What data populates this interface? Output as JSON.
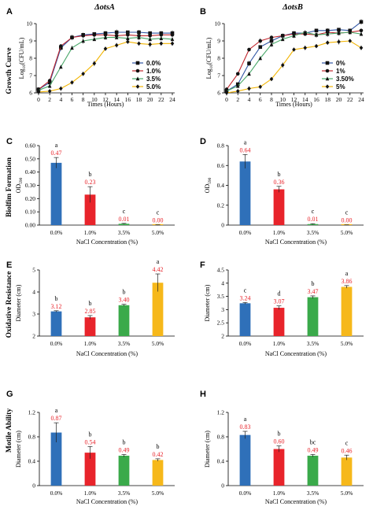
{
  "figure": {
    "row_labels": [
      "Growth Curve",
      "Biolfim Formation",
      "Oxidative Resistance",
      "Motile Ability"
    ],
    "value_label_color": "#e8242b"
  },
  "chart_data": [
    {
      "panel": "A",
      "type": "line",
      "title": "ΔotsA",
      "xlabel": "Times (Hours)",
      "ylabel": "Log10(CFU/mL)",
      "xlim": [
        0,
        24
      ],
      "ylim": [
        6,
        10
      ],
      "xticks": [
        0,
        2,
        4,
        6,
        8,
        10,
        12,
        14,
        16,
        18,
        20,
        22,
        24
      ],
      "yticks": [
        6,
        7,
        8,
        9,
        10
      ],
      "grid": false,
      "legend": "bottom-right",
      "x": [
        0,
        2,
        4,
        6,
        8,
        10,
        12,
        14,
        16,
        18,
        20,
        22,
        24
      ],
      "series": [
        {
          "name": "0.0%",
          "color": "#2f55a4",
          "marker": "square",
          "values": [
            6.2,
            6.6,
            8.6,
            9.2,
            9.35,
            9.4,
            9.45,
            9.5,
            9.5,
            9.5,
            9.45,
            9.45,
            9.45
          ]
        },
        {
          "name": "1.0%",
          "color": "#c0262d",
          "marker": "circle",
          "values": [
            6.2,
            6.7,
            8.7,
            9.2,
            9.3,
            9.35,
            9.35,
            9.3,
            9.35,
            9.3,
            9.3,
            9.35,
            9.35
          ]
        },
        {
          "name": "3.5%",
          "color": "#4aa86a",
          "marker": "triangle",
          "values": [
            6.15,
            6.4,
            7.5,
            8.6,
            9.0,
            9.1,
            9.2,
            9.2,
            9.15,
            9.2,
            9.1,
            9.15,
            9.1
          ]
        },
        {
          "name": "5.0%",
          "color": "#f2b400",
          "marker": "diamond",
          "values": [
            6.05,
            6.1,
            6.25,
            6.6,
            7.1,
            7.7,
            8.55,
            8.75,
            8.95,
            8.85,
            8.8,
            8.85,
            8.85
          ]
        }
      ]
    },
    {
      "panel": "B",
      "type": "line",
      "title": "ΔotsB",
      "xlabel": "Times (Hours)",
      "ylabel": "Log10(CFU/mL)",
      "xlim": [
        0,
        24
      ],
      "ylim": [
        6,
        10
      ],
      "xticks": [
        0,
        2,
        4,
        6,
        8,
        10,
        12,
        14,
        16,
        18,
        20,
        22,
        24
      ],
      "yticks": [
        6,
        7,
        8,
        9,
        10
      ],
      "grid": false,
      "legend": "bottom-right",
      "x": [
        0,
        2,
        4,
        6,
        8,
        10,
        12,
        14,
        16,
        18,
        20,
        22,
        24
      ],
      "series": [
        {
          "name": "0%",
          "color": "#2f55a4",
          "marker": "square",
          "values": [
            6.1,
            6.5,
            7.7,
            8.65,
            9.0,
            9.3,
            9.45,
            9.45,
            9.6,
            9.6,
            9.65,
            9.6,
            10.1
          ]
        },
        {
          "name": "1%",
          "color": "#c0262d",
          "marker": "circle",
          "values": [
            6.2,
            7.1,
            8.5,
            9.0,
            9.2,
            9.3,
            9.4,
            9.4,
            9.35,
            9.5,
            9.45,
            9.5,
            9.6
          ]
        },
        {
          "name": "3.50%",
          "color": "#4aa86a",
          "marker": "triangle",
          "values": [
            6.1,
            6.4,
            7.1,
            8.0,
            8.8,
            9.1,
            9.3,
            9.5,
            9.35,
            9.4,
            9.45,
            9.5,
            9.4
          ]
        },
        {
          "name": "5%",
          "color": "#f2b400",
          "marker": "diamond",
          "values": [
            6.0,
            6.1,
            6.25,
            6.35,
            6.8,
            7.6,
            8.5,
            8.6,
            8.7,
            8.9,
            8.95,
            9.0,
            8.6
          ]
        }
      ]
    },
    {
      "panel": "C",
      "type": "bar",
      "xlabel": "NaCl  Concentration (%)",
      "ylabel": "OD590",
      "ylim": [
        0,
        0.6
      ],
      "yticks": [
        0,
        0.1,
        0.2,
        0.3,
        0.4,
        0.5,
        0.6
      ],
      "yticklabels": [
        "0.00",
        "0.10",
        "0.20",
        "0.30",
        "0.40",
        "0.50",
        "0.60"
      ],
      "categories": [
        "0.0%",
        "1.0%",
        "3.5%",
        "5.0%"
      ],
      "values": [
        0.47,
        0.23,
        0.01,
        0.0
      ],
      "value_labels": [
        "0.47",
        "0.23",
        "0.01",
        "0.00"
      ],
      "errors": [
        0.04,
        0.06,
        0.003,
        0.002
      ],
      "sig": [
        "a",
        "b",
        "c",
        "c"
      ]
    },
    {
      "panel": "D",
      "type": "bar",
      "xlabel": "NaCl  Concentration (%)",
      "ylabel": "OD590",
      "ylim": [
        0,
        0.8
      ],
      "yticks": [
        0,
        0.2,
        0.4,
        0.6,
        0.8
      ],
      "yticklabels": [
        "0",
        "0.2",
        "0.4",
        "0.6",
        "0.8"
      ],
      "categories": [
        "0.0%",
        "1.0%",
        "3.5%",
        "5.0%"
      ],
      "values": [
        0.64,
        0.36,
        0.01,
        0.0
      ],
      "value_labels": [
        "0.64",
        "0.36",
        "0.01",
        "0.00"
      ],
      "errors": [
        0.07,
        0.03,
        0.004,
        0.002
      ],
      "sig": [
        "a",
        "b",
        "c",
        "c"
      ]
    },
    {
      "panel": "E",
      "type": "bar",
      "xlabel": "NaCl  Concentration (%)",
      "ylabel": "Diameter (cm)",
      "ylim": [
        2,
        5
      ],
      "yticks": [
        2,
        3,
        4,
        5
      ],
      "yticklabels": [
        "2",
        "3",
        "4",
        "5"
      ],
      "categories": [
        "0.0%",
        "1.0%",
        "3.5%",
        "5.0%"
      ],
      "values": [
        3.12,
        2.85,
        3.4,
        4.42
      ],
      "value_labels": [
        "3.12",
        "2.85",
        "3.40",
        "4.42"
      ],
      "errors": [
        0.03,
        0.08,
        0.04,
        0.4
      ],
      "sig": [
        "b",
        "b",
        "b",
        "a"
      ]
    },
    {
      "panel": "F",
      "type": "bar",
      "xlabel": "NaCl  Concentration (%)",
      "ylabel": "Diameter (cm)",
      "ylim": [
        2,
        4.5
      ],
      "yticks": [
        2,
        2.5,
        3,
        3.5,
        4,
        4.5
      ],
      "yticklabels": [
        "2",
        "2.5",
        "3",
        "3.5",
        "4",
        "4.5"
      ],
      "categories": [
        "0.0%",
        "1.0%",
        "3.5%",
        "5.0%"
      ],
      "values": [
        3.24,
        3.07,
        3.47,
        3.86
      ],
      "value_labels": [
        "3.24",
        "3.07",
        "3.47",
        "3.86"
      ],
      "errors": [
        0.03,
        0.07,
        0.05,
        0.05
      ],
      "sig": [
        "c",
        "d",
        "b",
        "a"
      ]
    },
    {
      "panel": "G",
      "type": "bar",
      "xlabel": "NaCl  Concentration (%)",
      "ylabel": "Diameter (cm)",
      "ylim": [
        0,
        1.2
      ],
      "yticks": [
        0,
        0.4,
        0.8,
        1.2
      ],
      "yticklabels": [
        "0",
        "0.4",
        "0.8",
        "1.2"
      ],
      "categories": [
        "0.0%",
        "1.0%",
        "3.5%",
        "5.0%"
      ],
      "values": [
        0.87,
        0.54,
        0.49,
        0.42
      ],
      "value_labels": [
        "0.87",
        "0.54",
        "0.49",
        "0.42"
      ],
      "errors": [
        0.16,
        0.1,
        0.02,
        0.02
      ],
      "sig": [
        "a",
        "b",
        "b",
        "b"
      ]
    },
    {
      "panel": "H",
      "type": "bar",
      "xlabel": "NaCl  Concentration (%)",
      "ylabel": "Diameter (cm)",
      "ylim": [
        0,
        1.2
      ],
      "yticks": [
        0,
        0.4,
        0.8,
        1.2
      ],
      "yticklabels": [
        "0",
        "0.4",
        "0.8",
        "1.2"
      ],
      "categories": [
        "0.0%",
        "1.0%",
        "3.5%",
        "5.0%"
      ],
      "values": [
        0.83,
        0.6,
        0.49,
        0.46
      ],
      "value_labels": [
        "0.83",
        "0.60",
        "0.49",
        "0.46"
      ],
      "errors": [
        0.06,
        0.05,
        0.02,
        0.04
      ],
      "sig": [
        "a",
        "b",
        "bc",
        "c"
      ]
    }
  ],
  "bar_colors": [
    "#2f70b9",
    "#e8242b",
    "#3aaa4a",
    "#f6b81a"
  ]
}
